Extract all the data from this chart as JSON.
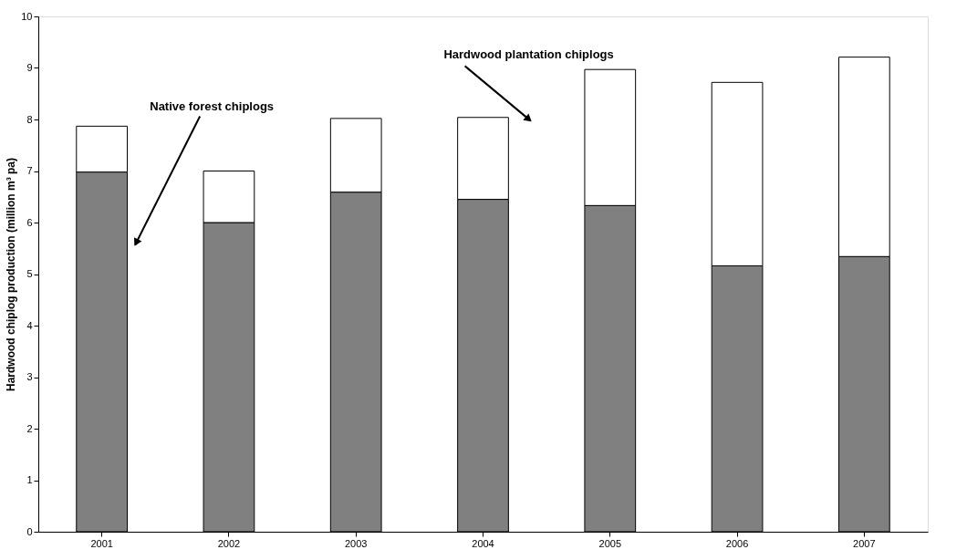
{
  "chart_data": {
    "type": "bar",
    "stacked": true,
    "ylabel": "Hardwood chiplog production (million m³ pa)",
    "categories": [
      "2001",
      "2002",
      "2003",
      "2004",
      "2005",
      "2006",
      "2007"
    ],
    "series": [
      {
        "color": "#808080",
        "values": [
          6.98,
          6.0,
          6.59,
          6.45,
          6.33,
          5.16,
          5.34
        ]
      },
      {
        "color": "#ffffff",
        "values": [
          0.89,
          1.0,
          1.43,
          1.59,
          2.64,
          3.56,
          3.87
        ]
      }
    ],
    "ylim": [
      0,
      10
    ],
    "yticks": [
      0,
      1,
      2,
      3,
      4,
      5,
      6,
      7,
      8,
      9,
      10
    ],
    "grid": false,
    "legend": false,
    "annotations": [
      "Native forest chiplogs",
      "Hardwood plantation chiplogs"
    ]
  }
}
